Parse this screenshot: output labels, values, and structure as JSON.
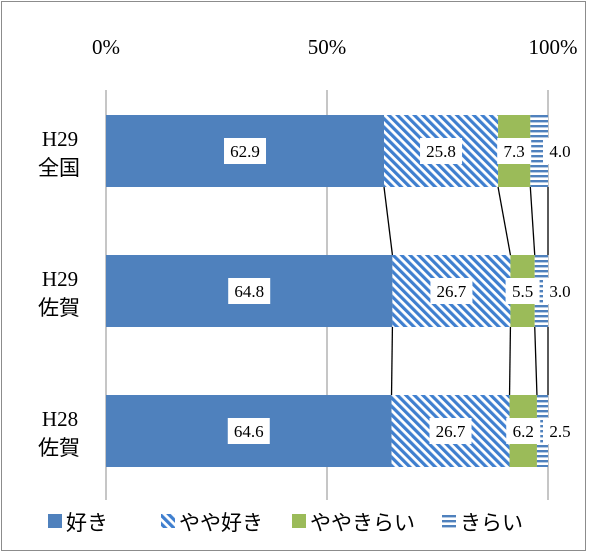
{
  "chart_data": {
    "type": "bar",
    "orientation": "horizontal",
    "stacked": "percent",
    "categories": [
      {
        "line1": "H29",
        "line2": "全国"
      },
      {
        "line1": "H29",
        "line2": "佐賀"
      },
      {
        "line1": "H28",
        "line2": "佐賀"
      }
    ],
    "series": [
      {
        "name": "好き",
        "color": "#4f81bd",
        "fill": "solid",
        "values": [
          62.9,
          64.8,
          64.6
        ]
      },
      {
        "name": "やや好き",
        "color": "#3f7fcf",
        "fill": "diagonal-hatch",
        "values": [
          25.8,
          26.7,
          26.7
        ]
      },
      {
        "name": "ややきらい",
        "color": "#9bbb59",
        "fill": "solid",
        "values": [
          7.3,
          5.5,
          6.2
        ]
      },
      {
        "name": "きらい",
        "color": "#4f81bd",
        "fill": "horizontal-lines",
        "values": [
          4.0,
          3.0,
          2.5
        ]
      }
    ],
    "labels": [
      [
        "62.9",
        "25.8",
        "7.3",
        "4.0"
      ],
      [
        "64.8",
        "26.7",
        "5.5",
        "3.0"
      ],
      [
        "64.6",
        "26.7",
        "6.2",
        "2.5"
      ]
    ],
    "axis": {
      "ticks": [
        "0%",
        "50%",
        "100%"
      ],
      "tick_values": [
        0,
        50,
        100
      ],
      "position": "top",
      "range": [
        0,
        100
      ]
    },
    "gridlines": true,
    "series_lines": true,
    "legend": {
      "position": "bottom"
    },
    "title": "",
    "xlabel": "",
    "ylabel": ""
  }
}
